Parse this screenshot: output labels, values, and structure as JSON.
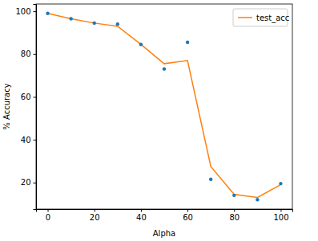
{
  "chart_data": {
    "type": "line",
    "x_label": "Alpha",
    "y_label": "% Accuracy",
    "x": [
      0,
      10,
      20,
      30,
      40,
      50,
      60,
      70,
      80,
      90,
      100
    ],
    "series": [
      {
        "name": "test_acc",
        "type": "line",
        "color": "#ff7f0e",
        "line_style": "solid",
        "values": [
          99,
          96.5,
          94.5,
          93,
          84.5,
          75.5,
          77,
          27.5,
          14.5,
          13,
          19
        ]
      },
      {
        "type": "scatter",
        "color": "#1f77b4",
        "marker": "circle",
        "values": [
          99,
          96.5,
          94.5,
          94,
          84.5,
          73,
          85.5,
          21.5,
          14,
          12,
          19.5
        ]
      }
    ],
    "xlim": [
      -5,
      105
    ],
    "xticks": [
      0,
      20,
      40,
      60,
      80,
      100
    ],
    "ylim": [
      7.6,
      103.4
    ],
    "yticks": [
      20,
      40,
      60,
      80,
      100
    ],
    "grid": false,
    "legend": "upper right"
  }
}
